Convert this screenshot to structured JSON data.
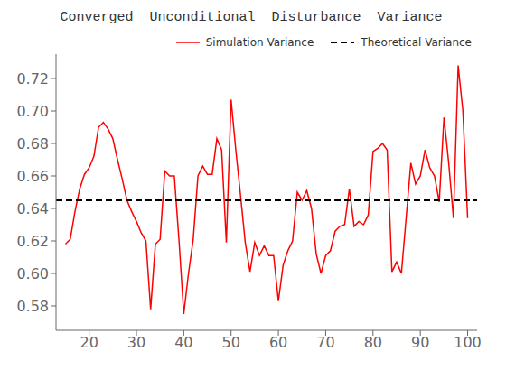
{
  "chart_data": {
    "type": "line",
    "title": "Converged  Unconditional  Disturbance  Variance",
    "x": [
      15,
      16,
      17,
      18,
      19,
      20,
      21,
      22,
      23,
      24,
      25,
      26,
      27,
      28,
      29,
      30,
      31,
      32,
      33,
      34,
      35,
      36,
      37,
      38,
      39,
      40,
      41,
      42,
      43,
      44,
      45,
      46,
      47,
      48,
      49,
      50,
      51,
      52,
      53,
      54,
      55,
      56,
      57,
      58,
      59,
      60,
      61,
      62,
      63,
      64,
      65,
      66,
      67,
      68,
      69,
      70,
      71,
      72,
      73,
      74,
      75,
      76,
      77,
      78,
      79,
      80,
      81,
      82,
      83,
      84,
      85,
      86,
      87,
      88,
      89,
      90,
      91,
      92,
      93,
      94,
      95,
      96,
      97,
      98,
      99,
      100
    ],
    "series": [
      {
        "name": "Simulation Variance",
        "color": "#FF0000",
        "line_style": "solid",
        "values": [
          0.618,
          0.621,
          0.638,
          0.652,
          0.661,
          0.665,
          0.672,
          0.69,
          0.693,
          0.689,
          0.683,
          0.67,
          0.658,
          0.645,
          0.638,
          0.632,
          0.625,
          0.62,
          0.578,
          0.618,
          0.621,
          0.663,
          0.66,
          0.66,
          0.62,
          0.575,
          0.6,
          0.621,
          0.66,
          0.666,
          0.661,
          0.661,
          0.683,
          0.676,
          0.619,
          0.707,
          0.676,
          0.648,
          0.619,
          0.601,
          0.619,
          0.611,
          0.617,
          0.611,
          0.611,
          0.583,
          0.605,
          0.614,
          0.62,
          0.65,
          0.645,
          0.651,
          0.64,
          0.612,
          0.6,
          0.611,
          0.614,
          0.626,
          0.629,
          0.63,
          0.652,
          0.629,
          0.632,
          0.63,
          0.636,
          0.675,
          0.677,
          0.68,
          0.676,
          0.601,
          0.607,
          0.6,
          0.634,
          0.668,
          0.655,
          0.66,
          0.676,
          0.665,
          0.66,
          0.644,
          0.696,
          0.668,
          0.634,
          0.728,
          0.7,
          0.634
        ]
      },
      {
        "name": "Theoretical Variance",
        "type": "hline",
        "color": "#000000",
        "line_style": "dashed",
        "y": 0.645
      }
    ],
    "xlim": [
      13,
      102
    ],
    "xticks": [
      20,
      30,
      40,
      50,
      60,
      70,
      80,
      90,
      100
    ],
    "ylim": [
      0.565,
      0.735
    ],
    "yticks": [
      0.58,
      {
        "value": 0.6,
        "label": "0.60"
      },
      0.62,
      0.64,
      0.66,
      0.68,
      {
        "value": 0.7,
        "label": "0.70"
      },
      0.72
    ],
    "grid": false,
    "legend": "upper right"
  }
}
